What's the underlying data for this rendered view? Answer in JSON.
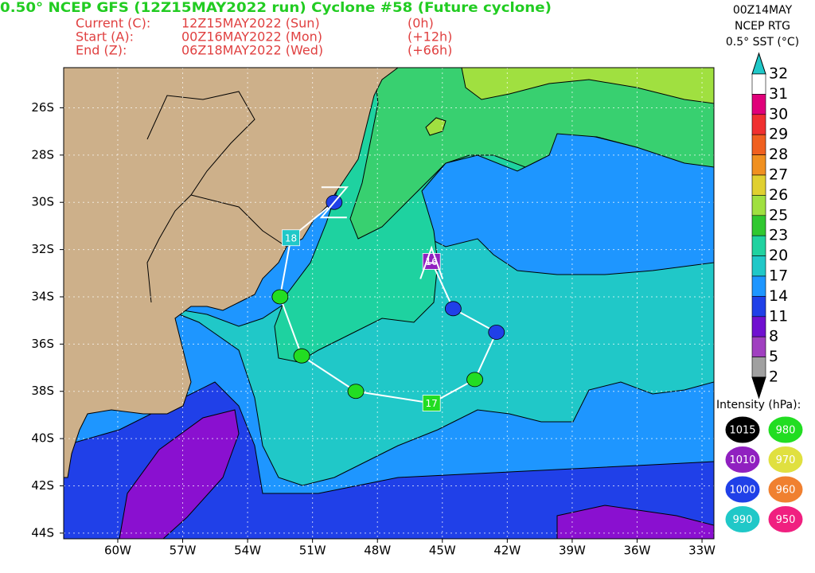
{
  "header": {
    "title": "0.50° NCEP GFS (12Z15MAY2022 run) Cyclone #58 (Future cyclone)",
    "rows": [
      [
        "Current (C):",
        "12Z15MAY2022 (Sun)",
        "(0h)"
      ],
      [
        "Start (A):",
        "00Z16MAY2022 (Mon)",
        "(+12h)"
      ],
      [
        "End (Z):",
        "06Z18MAY2022 (Wed)",
        "(+66h)"
      ]
    ]
  },
  "sst_header": [
    "00Z14MAY",
    "NCEP RTG",
    "0.5° SST (°C)"
  ],
  "colorbar": {
    "levels": [
      32,
      31,
      30,
      29,
      28,
      27,
      26,
      25,
      23,
      20,
      17,
      14,
      11,
      8,
      5,
      2
    ],
    "colors": [
      "#ffffff",
      "#e0007a",
      "#f03030",
      "#f06020",
      "#f09020",
      "#e0d030",
      "#a0e040",
      "#30c830",
      "#20d2a0",
      "#20c8c8",
      "#1e96ff",
      "#2040e8",
      "#7010d0",
      "#a040c0",
      "#a0a0a0"
    ],
    "over_color": "#20c8c8",
    "under_color": "#000000"
  },
  "intensity_legend": {
    "title": "Intensity (hPa):",
    "values": [
      1015,
      980,
      1010,
      970,
      1000,
      960,
      990,
      950
    ],
    "colors": [
      "#000000",
      "#22dd22",
      "#9020c0",
      "#e0e040",
      "#2040e8",
      "#f08030",
      "#20c8c8",
      "#f02080"
    ]
  },
  "map": {
    "xlim": [
      -62.5,
      -32.45
    ],
    "ylim": [
      -44.24,
      -24.3
    ],
    "xticks": [
      {
        "value": -60,
        "label": "60W"
      },
      {
        "value": -57,
        "label": "57W"
      },
      {
        "value": -54,
        "label": "54W"
      },
      {
        "value": -51,
        "label": "51W"
      },
      {
        "value": -48,
        "label": "48W"
      },
      {
        "value": -45,
        "label": "45W"
      },
      {
        "value": -42,
        "label": "42W"
      },
      {
        "value": -39,
        "label": "39W"
      },
      {
        "value": -36,
        "label": "36W"
      },
      {
        "value": -33,
        "label": "33W"
      }
    ],
    "yticks": [
      {
        "value": -26,
        "label": "26S"
      },
      {
        "value": -28,
        "label": "28S"
      },
      {
        "value": -30,
        "label": "30S"
      },
      {
        "value": -32,
        "label": "32S"
      },
      {
        "value": -34,
        "label": "34S"
      },
      {
        "value": -36,
        "label": "36S"
      },
      {
        "value": -38,
        "label": "38S"
      },
      {
        "value": -40,
        "label": "40S"
      },
      {
        "value": -42,
        "label": "42S"
      },
      {
        "value": -44,
        "label": "44S"
      }
    ],
    "grid": true
  },
  "track": {
    "lon": [
      -45.5,
      -44.5,
      -42.5,
      -43.5,
      -45.5,
      -49.0,
      -51.5,
      -52.5,
      -52.0,
      -50.0
    ],
    "lat": [
      -32.5,
      -34.5,
      -35.5,
      -37.5,
      -38.5,
      -38.0,
      -36.5,
      -34.0,
      -31.5,
      -30.0
    ],
    "intensity": [
      1010,
      1000,
      1000,
      980,
      980,
      980,
      980,
      980,
      990,
      1000
    ],
    "labels": [
      "16",
      null,
      null,
      null,
      "17",
      null,
      null,
      null,
      "18",
      null
    ],
    "color": "#ffffff"
  }
}
